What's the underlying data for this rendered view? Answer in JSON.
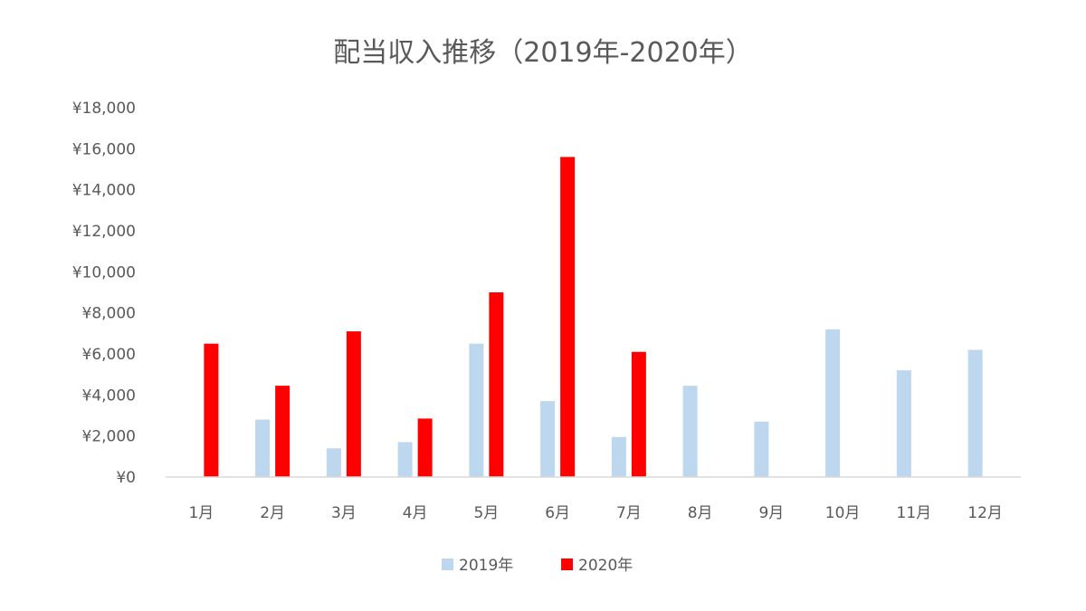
{
  "chart_data": {
    "type": "bar",
    "title": "配当収入推移（2019年-2020年）",
    "xlabel": "",
    "ylabel": "",
    "categories": [
      "1月",
      "2月",
      "3月",
      "4月",
      "5月",
      "6月",
      "7月",
      "8月",
      "9月",
      "10月",
      "11月",
      "12月"
    ],
    "series": [
      {
        "name": "2019年",
        "color": "#bdd7ee",
        "values": [
          0,
          2800,
          1400,
          1700,
          6500,
          3700,
          1950,
          4450,
          2700,
          7200,
          5200,
          6200
        ]
      },
      {
        "name": "2020年",
        "color": "#ff0000",
        "values": [
          6500,
          4450,
          7100,
          2850,
          9000,
          15600,
          6100,
          null,
          null,
          null,
          null,
          null
        ]
      }
    ],
    "ylim": [
      0,
      18000
    ],
    "yticks": [
      "¥0",
      "¥2,000",
      "¥4,000",
      "¥6,000",
      "¥8,000",
      "¥10,000",
      "¥12,000",
      "¥14,000",
      "¥16,000",
      "¥18,000"
    ],
    "ytick_values": [
      0,
      2000,
      4000,
      6000,
      8000,
      10000,
      12000,
      14000,
      16000,
      18000
    ],
    "grid": false,
    "legend_position": "bottom"
  }
}
